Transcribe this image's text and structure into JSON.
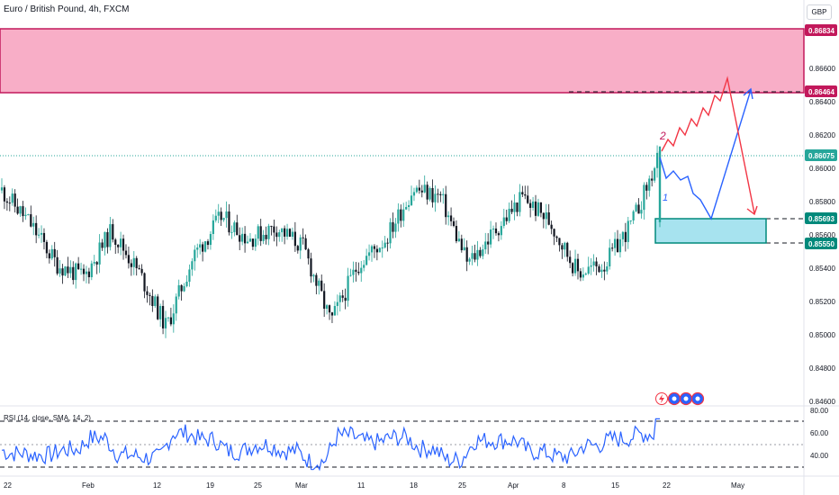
{
  "header": {
    "symbol_title": "Euro / British Pound, 4h, FXCM",
    "currency": "GBP"
  },
  "rsi_panel": {
    "title": "RSI (14, close, SMA, 14, 2)",
    "axis_labels": [
      "80.00",
      "60.00",
      "40.00"
    ],
    "levels": [
      70,
      50,
      30
    ],
    "line_color": "#2962ff",
    "last_value": 80
  },
  "price_axis": {
    "labels": [
      "0.86600",
      "0.86400",
      "0.86200",
      "0.86000",
      "0.85800",
      "0.85600",
      "0.85400",
      "0.85200",
      "0.85000",
      "0.84800",
      "0.84600"
    ]
  },
  "time_axis": {
    "labels": [
      "22",
      "Feb",
      "12",
      "19",
      "25",
      "Mar",
      "11",
      "18",
      "25",
      "Apr",
      "8",
      "15",
      "22",
      "May"
    ]
  },
  "price_markers": [
    {
      "value": "0.86834",
      "color": "#c2185b",
      "text_color": "#ffffff"
    },
    {
      "value": "0.86464",
      "color": "#c2185b",
      "text_color": "#ffffff"
    },
    {
      "value": "0.86075",
      "color": "#26a69a",
      "text_color": "#ffffff"
    },
    {
      "value": "0.85693",
      "color": "#00897b",
      "text_color": "#ffffff"
    },
    {
      "value": "0.85550",
      "color": "#00897b",
      "text_color": "#ffffff"
    }
  ],
  "annotations": {
    "wave_label_1": "1",
    "wave_label_2": "2",
    "event_icons": [
      "lightning-icon",
      "dividend-icon",
      "dividend-icon",
      "dividend-icon"
    ]
  },
  "colors": {
    "bull_candle": "#26a69a",
    "bear_candle": "#131722",
    "resistance_zone": "#f8aec7",
    "resistance_border": "#c2185b",
    "support_zone": "#a7e3ef",
    "support_border": "#00897b",
    "bullish_path": "#2962ff",
    "bearish_path": "#f23645"
  },
  "chart_data": {
    "type": "candlestick",
    "title": "Euro / British Pound, 4h, FXCM",
    "y_range": [
      0.8455,
      0.8698
    ],
    "approx_close_path": [
      {
        "date": "Jan 18",
        "close": 0.8584
      },
      {
        "date": "Jan 22",
        "close": 0.8565
      },
      {
        "date": "Jan 26",
        "close": 0.854
      },
      {
        "date": "Feb 1",
        "close": 0.8532
      },
      {
        "date": "Feb 6",
        "close": 0.856
      },
      {
        "date": "Feb 9",
        "close": 0.8535
      },
      {
        "date": "Feb 14",
        "close": 0.8502
      },
      {
        "date": "Feb 16",
        "close": 0.8545
      },
      {
        "date": "Feb 21",
        "close": 0.8568
      },
      {
        "date": "Feb 26",
        "close": 0.8555
      },
      {
        "date": "Mar 1",
        "close": 0.8562
      },
      {
        "date": "Mar 7",
        "close": 0.855
      },
      {
        "date": "Mar 11",
        "close": 0.8505
      },
      {
        "date": "Mar 15",
        "close": 0.854
      },
      {
        "date": "Mar 20",
        "close": 0.8555
      },
      {
        "date": "Mar 24",
        "close": 0.8585
      },
      {
        "date": "Mar 27",
        "close": 0.858
      },
      {
        "date": "Apr 2",
        "close": 0.854
      },
      {
        "date": "Apr 5",
        "close": 0.856
      },
      {
        "date": "Apr 9",
        "close": 0.858
      },
      {
        "date": "Apr 12",
        "close": 0.8565
      },
      {
        "date": "Apr 15",
        "close": 0.8535
      },
      {
        "date": "Apr 19",
        "close": 0.854
      },
      {
        "date": "Apr 21",
        "close": 0.8565
      },
      {
        "date": "Apr 22",
        "close": 0.8605
      }
    ],
    "zones": [
      {
        "name": "resistance",
        "from": 0.86464,
        "to": 0.86834
      },
      {
        "name": "support",
        "from": 0.8555,
        "to": 0.85693
      }
    ],
    "projections": [
      {
        "name": "bullish",
        "points": [
          0.86075,
          0.8585,
          0.859,
          0.8575,
          0.857,
          0.86464
        ]
      },
      {
        "name": "bearish",
        "points": [
          0.86075,
          0.8615,
          0.8625,
          0.8635,
          0.8648,
          0.8655,
          0.8575
        ]
      }
    ]
  }
}
